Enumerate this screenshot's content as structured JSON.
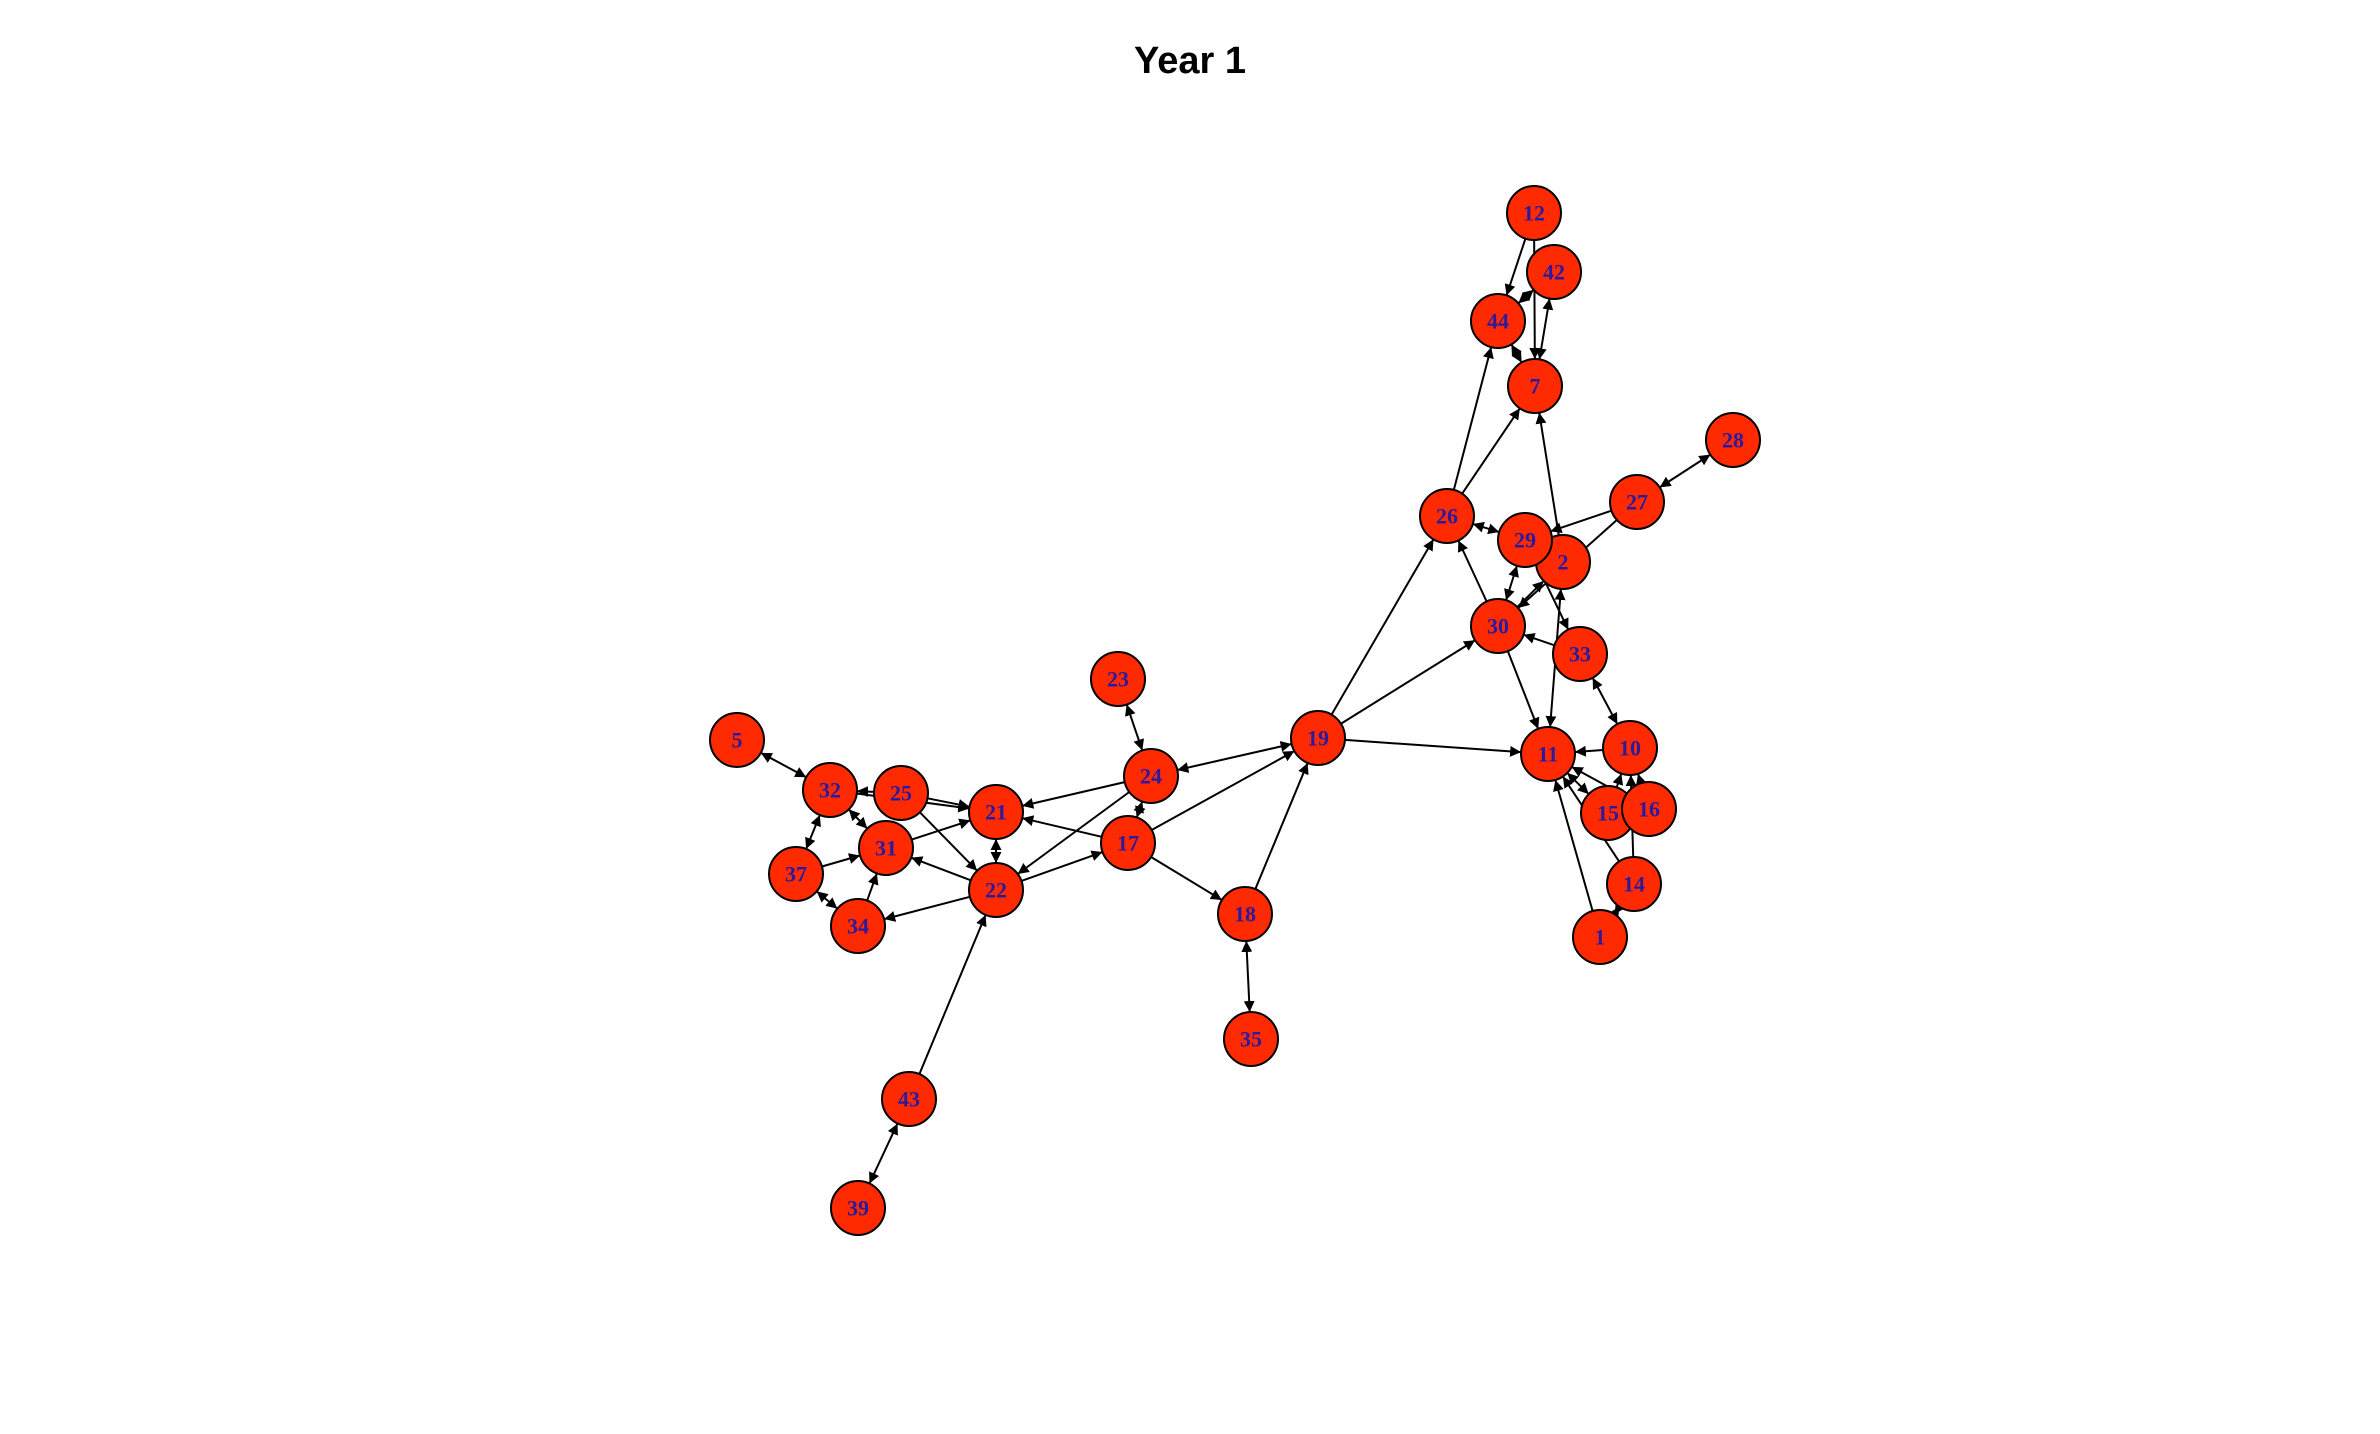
{
  "title": "Year 1",
  "colors": {
    "node_fill": "#ff2a00",
    "node_stroke": "#000000",
    "label": "#2b1a9e",
    "edge": "#000000"
  },
  "nodes": [
    "1",
    "2",
    "5",
    "7",
    "10",
    "11",
    "12",
    "14",
    "15",
    "16",
    "17",
    "18",
    "19",
    "21",
    "22",
    "23",
    "24",
    "25",
    "26",
    "27",
    "28",
    "29",
    "30",
    "31",
    "32",
    "33",
    "34",
    "35",
    "37",
    "39",
    "42",
    "43",
    "44"
  ],
  "edges": [
    {
      "from": "12",
      "to": "44",
      "dir": "forward"
    },
    {
      "from": "12",
      "to": "7",
      "dir": "forward"
    },
    {
      "from": "42",
      "to": "44",
      "dir": "both"
    },
    {
      "from": "42",
      "to": "7",
      "dir": "both"
    },
    {
      "from": "44",
      "to": "7",
      "dir": "both"
    },
    {
      "from": "2",
      "to": "7",
      "dir": "forward"
    },
    {
      "from": "26",
      "to": "44",
      "dir": "forward"
    },
    {
      "from": "26",
      "to": "7",
      "dir": "forward"
    },
    {
      "from": "27",
      "to": "28",
      "dir": "both"
    },
    {
      "from": "27",
      "to": "29",
      "dir": "forward"
    },
    {
      "from": "27",
      "to": "30",
      "dir": "forward"
    },
    {
      "from": "29",
      "to": "26",
      "dir": "both"
    },
    {
      "from": "29",
      "to": "30",
      "dir": "both"
    },
    {
      "from": "29",
      "to": "33",
      "dir": "forward"
    },
    {
      "from": "30",
      "to": "2",
      "dir": "forward"
    },
    {
      "from": "30",
      "to": "26",
      "dir": "forward"
    },
    {
      "from": "33",
      "to": "30",
      "dir": "forward"
    },
    {
      "from": "30",
      "to": "11",
      "dir": "forward"
    },
    {
      "from": "2",
      "to": "11",
      "dir": "both"
    },
    {
      "from": "33",
      "to": "10",
      "dir": "both"
    },
    {
      "from": "10",
      "to": "11",
      "dir": "forward"
    },
    {
      "from": "15",
      "to": "11",
      "dir": "both"
    },
    {
      "from": "16",
      "to": "11",
      "dir": "forward"
    },
    {
      "from": "15",
      "to": "10",
      "dir": "forward"
    },
    {
      "from": "16",
      "to": "10",
      "dir": "forward"
    },
    {
      "from": "14",
      "to": "11",
      "dir": "forward"
    },
    {
      "from": "1",
      "to": "11",
      "dir": "forward"
    },
    {
      "from": "1",
      "to": "14",
      "dir": "both"
    },
    {
      "from": "14",
      "to": "10",
      "dir": "forward"
    },
    {
      "from": "19",
      "to": "26",
      "dir": "forward"
    },
    {
      "from": "19",
      "to": "30",
      "dir": "forward"
    },
    {
      "from": "19",
      "to": "11",
      "dir": "forward"
    },
    {
      "from": "24",
      "to": "19",
      "dir": "both"
    },
    {
      "from": "17",
      "to": "19",
      "dir": "forward"
    },
    {
      "from": "18",
      "to": "19",
      "dir": "forward"
    },
    {
      "from": "17",
      "to": "18",
      "dir": "forward"
    },
    {
      "from": "18",
      "to": "35",
      "dir": "both"
    },
    {
      "from": "23",
      "to": "24",
      "dir": "both"
    },
    {
      "from": "24",
      "to": "17",
      "dir": "both"
    },
    {
      "from": "24",
      "to": "21",
      "dir": "forward"
    },
    {
      "from": "24",
      "to": "22",
      "dir": "forward"
    },
    {
      "from": "17",
      "to": "21",
      "dir": "forward"
    },
    {
      "from": "22",
      "to": "17",
      "dir": "forward"
    },
    {
      "from": "21",
      "to": "22",
      "dir": "both"
    },
    {
      "from": "25",
      "to": "21",
      "dir": "forward"
    },
    {
      "from": "25",
      "to": "22",
      "dir": "forward"
    },
    {
      "from": "25",
      "to": "32",
      "dir": "forward"
    },
    {
      "from": "32",
      "to": "21",
      "dir": "forward"
    },
    {
      "from": "31",
      "to": "21",
      "dir": "forward"
    },
    {
      "from": "22",
      "to": "31",
      "dir": "forward"
    },
    {
      "from": "22",
      "to": "34",
      "dir": "forward"
    },
    {
      "from": "5",
      "to": "32",
      "dir": "both"
    },
    {
      "from": "32",
      "to": "31",
      "dir": "both"
    },
    {
      "from": "32",
      "to": "37",
      "dir": "both"
    },
    {
      "from": "37",
      "to": "31",
      "dir": "forward"
    },
    {
      "from": "37",
      "to": "34",
      "dir": "both"
    },
    {
      "from": "34",
      "to": "31",
      "dir": "forward"
    },
    {
      "from": "43",
      "to": "22",
      "dir": "forward"
    },
    {
      "from": "43",
      "to": "39",
      "dir": "both"
    }
  ]
}
